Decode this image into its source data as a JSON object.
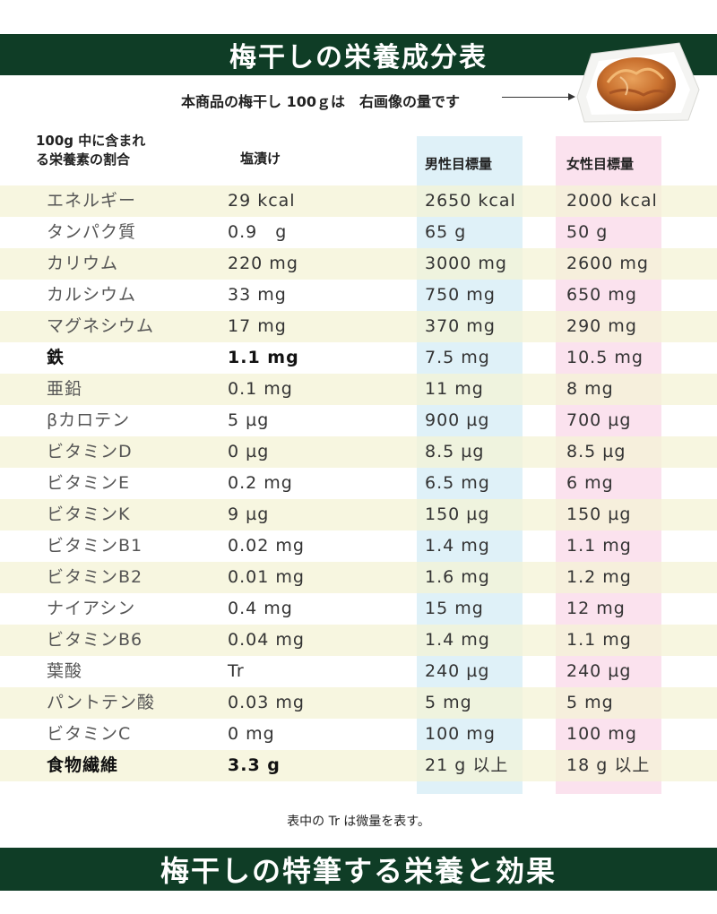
{
  "title": "梅干しの栄養成分表",
  "subtitle": "本商品の梅干し 100ｇは　右画像の量です",
  "headers": {
    "ratio_line1": "100g 中に含まれ",
    "ratio_line2": "る栄養素の割合",
    "salt": "塩漬け",
    "men": "男性目標量",
    "women": "女性目標量"
  },
  "rows": [
    {
      "name": "エネルギー",
      "salt": "29 kcal",
      "men": "2650 kcal",
      "women": "2000 kcal"
    },
    {
      "name": "タンパク質",
      "salt": "0.9　g",
      "men": "65 g",
      "women": "50 g"
    },
    {
      "name": "カリウム",
      "salt": "220 mg",
      "men": "3000 mg",
      "women": "2600 mg"
    },
    {
      "name": "カルシウム",
      "salt": "33 mg",
      "men": "750 mg",
      "women": "650 mg"
    },
    {
      "name": "マグネシウム",
      "salt": "17 mg",
      "men": "370 mg",
      "women": "290 mg"
    },
    {
      "name": "鉄",
      "salt": "1.1 mg",
      "men": "7.5 mg",
      "women": "10.5 mg"
    },
    {
      "name": "亜鉛",
      "salt": "0.1 mg",
      "men": "11 mg",
      "women": "8 mg"
    },
    {
      "name": "βカロテン",
      "salt": "5 µg",
      "men": "900 µg",
      "women": "700 µg"
    },
    {
      "name": "ビタミンD",
      "salt": "0 µg",
      "men": "8.5 µg",
      "women": "8.5 µg"
    },
    {
      "name": "ビタミンE",
      "salt": "0.2 mg",
      "men": "6.5 mg",
      "women": "6 mg"
    },
    {
      "name": "ビタミンK",
      "salt": "9 µg",
      "men": "150 µg",
      "women": "150 µg"
    },
    {
      "name": "ビタミンB1",
      "salt": "0.02 mg",
      "men": "1.4 mg",
      "women": "1.1 mg"
    },
    {
      "name": "ビタミンB2",
      "salt": "0.01 mg",
      "men": "1.6 mg",
      "women": "1.2 mg"
    },
    {
      "name": "ナイアシン",
      "salt": "0.4 mg",
      "men": "15 mg",
      "women": "12 mg"
    },
    {
      "name": "ビタミンB6",
      "salt": "0.04 mg",
      "men": "1.4 mg",
      "women": "1.1 mg"
    },
    {
      "name": "葉酸",
      "salt": "Tr",
      "men": "240 µg",
      "women": "240 µg"
    },
    {
      "name": "パントテン酸",
      "salt": "0.03 mg",
      "men": "5 mg",
      "women": "5 mg"
    },
    {
      "name": "ビタミンC",
      "salt": "0 mg",
      "men": "100 mg",
      "women": "100 mg"
    },
    {
      "name": "食物繊維",
      "salt": "3.3 g",
      "men": "21 g 以上",
      "women": "18 g 以上"
    }
  ],
  "footnote": "表中の Tr は微量を表す。",
  "bottom_title": "梅干しの特筆する栄養と効果",
  "colors": {
    "banner": "#0f3d26",
    "men_column": "#dff1f8",
    "women_column": "#fbe2ee",
    "row_shade": "#f4f3d6"
  }
}
